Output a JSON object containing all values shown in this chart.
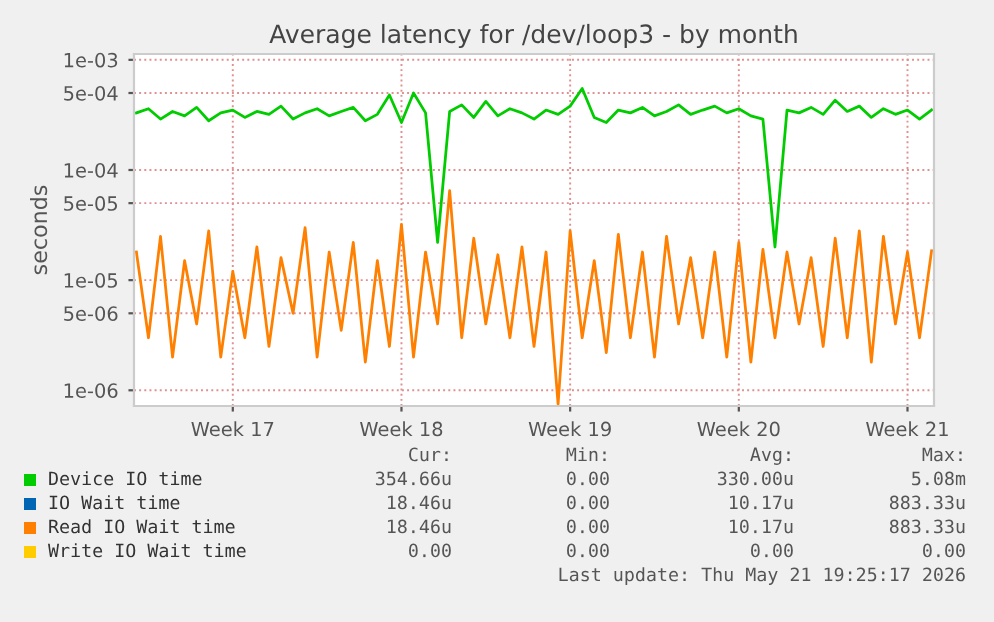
{
  "chart_data": {
    "type": "line",
    "title": "Average latency for /dev/loop3 - by month",
    "ylabel": "seconds",
    "categories": [
      null,
      null,
      null,
      null,
      null,
      null,
      null,
      null,
      "Week 17",
      null,
      null,
      null,
      null,
      null,
      null,
      null,
      null,
      null,
      null,
      null,
      null,
      null,
      "Week 18",
      null,
      null,
      null,
      null,
      null,
      null,
      null,
      null,
      null,
      null,
      null,
      null,
      null,
      "Week 19",
      null,
      null,
      null,
      null,
      null,
      null,
      null,
      null,
      null,
      null,
      null,
      null,
      null,
      "Week 20",
      null,
      null,
      null,
      null,
      null,
      null,
      null,
      null,
      null,
      null,
      null,
      null,
      null,
      "Week 21",
      null,
      null
    ],
    "series": [
      {
        "name": "Device IO time",
        "color": "#00cc00",
        "values": [
          0.00033,
          0.00036,
          0.00029,
          0.00034,
          0.00031,
          0.00037,
          0.00028,
          0.00033,
          0.00035,
          0.0003,
          0.00034,
          0.00032,
          0.00038,
          0.00029,
          0.00033,
          0.00036,
          0.00031,
          0.00034,
          0.00037,
          0.00028,
          0.00032,
          0.00048,
          0.00027,
          0.0005,
          0.00033,
          2.2e-05,
          0.00034,
          0.00039,
          0.0003,
          0.00042,
          0.00031,
          0.00036,
          0.00033,
          0.00029,
          0.00035,
          0.00032,
          0.00038,
          0.00055,
          0.0003,
          0.00027,
          0.00035,
          0.00033,
          0.00037,
          0.00031,
          0.00034,
          0.00039,
          0.00032,
          0.00035,
          0.00038,
          0.00033,
          0.00036,
          0.00031,
          0.00029,
          2e-05,
          0.00035,
          0.00033,
          0.00037,
          0.00032,
          0.00043,
          0.00034,
          0.00038,
          0.0003,
          0.00036,
          0.00032,
          0.00035,
          0.00029,
          0.00035
        ]
      },
      {
        "name": "IO Wait time",
        "color": "#0066b3",
        "values": [
          null,
          null,
          null,
          null,
          null,
          null,
          null,
          null,
          null,
          null,
          null,
          null,
          null,
          null,
          null,
          null,
          null,
          null,
          null,
          null,
          null,
          null,
          null,
          null,
          null,
          null,
          null,
          null,
          null,
          null,
          null,
          null,
          null,
          null,
          null,
          null,
          null,
          null,
          null,
          null,
          null,
          null,
          null,
          null,
          null,
          null,
          null,
          null,
          null,
          null,
          null,
          null,
          null,
          null,
          null,
          null,
          null,
          null,
          null,
          null,
          null,
          null,
          null,
          null,
          null,
          null,
          null
        ]
      },
      {
        "name": "Read IO Wait time",
        "color": "#ff8000",
        "values": [
          1.8e-05,
          3e-06,
          2.5e-05,
          2e-06,
          1.5e-05,
          4e-06,
          2.8e-05,
          2e-06,
          1.2e-05,
          3e-06,
          2e-05,
          2.5e-06,
          1.6e-05,
          5e-06,
          3e-05,
          2e-06,
          1.8e-05,
          3.5e-06,
          2.2e-05,
          1.8e-06,
          1.5e-05,
          2.5e-06,
          3.2e-05,
          2e-06,
          1.8e-05,
          4e-06,
          6.5e-05,
          3e-06,
          2.4e-05,
          4e-06,
          1.7e-05,
          3e-06,
          2e-05,
          2.5e-06,
          1.8e-05,
          7.5e-07,
          2.8e-05,
          3e-06,
          1.5e-05,
          2.2e-06,
          2.6e-05,
          3e-06,
          1.8e-05,
          2e-06,
          2.5e-05,
          4e-06,
          1.6e-05,
          3e-06,
          1.8e-05,
          2e-06,
          2.2e-05,
          1.8e-06,
          1.9e-05,
          3e-06,
          1.8e-05,
          4e-06,
          1.6e-05,
          2.5e-06,
          2.4e-05,
          3e-06,
          2.8e-05,
          1.8e-06,
          2.5e-05,
          4e-06,
          1.8e-05,
          3e-06,
          1.85e-05
        ]
      },
      {
        "name": "Write IO Wait time",
        "color": "#ffcc00",
        "values": [
          null,
          null,
          null,
          null,
          null,
          null,
          null,
          null,
          null,
          null,
          null,
          null,
          null,
          null,
          null,
          null,
          null,
          null,
          null,
          null,
          null,
          null,
          null,
          null,
          null,
          null,
          null,
          null,
          null,
          null,
          null,
          null,
          null,
          null,
          null,
          null,
          null,
          null,
          null,
          null,
          null,
          null,
          null,
          null,
          null,
          null,
          null,
          null,
          null,
          null,
          null,
          null,
          null,
          null,
          null,
          null,
          null,
          null,
          null,
          null,
          null,
          null,
          null,
          null,
          null,
          null,
          null
        ]
      }
    ],
    "log": "y",
    "ylim": [
      7.2e-07,
      0.00113
    ],
    "yticks": [
      {
        "value": 1e-06,
        "label": "1e-06"
      },
      {
        "value": 5e-06,
        "label": "5e-06"
      },
      {
        "value": 1e-05,
        "label": "1e-05"
      },
      {
        "value": 5e-05,
        "label": "5e-05"
      },
      {
        "value": 0.0001,
        "label": "1e-04"
      },
      {
        "value": 0.0005,
        "label": "5e-04"
      },
      {
        "value": 0.001,
        "label": "1e-03"
      }
    ],
    "grid": true,
    "legend": "bottom",
    "annotations": [
      "Cur:",
      "Min:",
      "Avg:",
      "Max:",
      "354.66u",
      "0.00",
      "330.00u",
      "5.08m",
      "18.46u",
      "0.00",
      "10.17u",
      "883.33u",
      "18.46u",
      "0.00",
      "10.17u",
      "883.33u",
      "0.00",
      "0.00",
      "0.00",
      "0.00",
      "Last update: Thu May 21 19:25:17 2026"
    ]
  }
}
